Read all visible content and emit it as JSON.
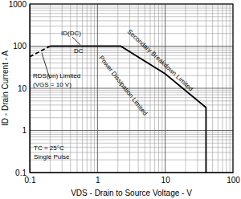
{
  "chart_data": {
    "type": "line",
    "log": true,
    "grid": true,
    "x_label": "VDS - Drain to Source Voltage - V",
    "y_label": "ID - Drain Current - A",
    "xlim": [
      0.1,
      100
    ],
    "ylim": [
      0.1,
      1000
    ],
    "xticks": [
      0.1,
      1,
      10,
      100
    ],
    "yticks": [
      0.1,
      1,
      10,
      100,
      1000
    ],
    "series": [
      {
        "x": [
          0.1,
          0.2
        ],
        "values": [
          56,
          100
        ],
        "color": "#000000",
        "line_style": "dashed"
      },
      {
        "x": [
          0.2,
          2.2,
          10,
          40,
          40
        ],
        "values": [
          100,
          100,
          22,
          3.5,
          0.1
        ],
        "color": "#000000",
        "line_style": "solid"
      }
    ],
    "annotations": [
      {
        "text": "ID(DC)"
      },
      {
        "text": "DC"
      },
      {
        "text": "RDS(on) Limited"
      },
      {
        "text": "(VGS = 10 V)"
      },
      {
        "text": "Secondary Breakdown Limited"
      },
      {
        "text": "Power Dissipation Limited"
      },
      {
        "text": "TC = 25°C"
      },
      {
        "text": "Single Pulse"
      }
    ]
  }
}
